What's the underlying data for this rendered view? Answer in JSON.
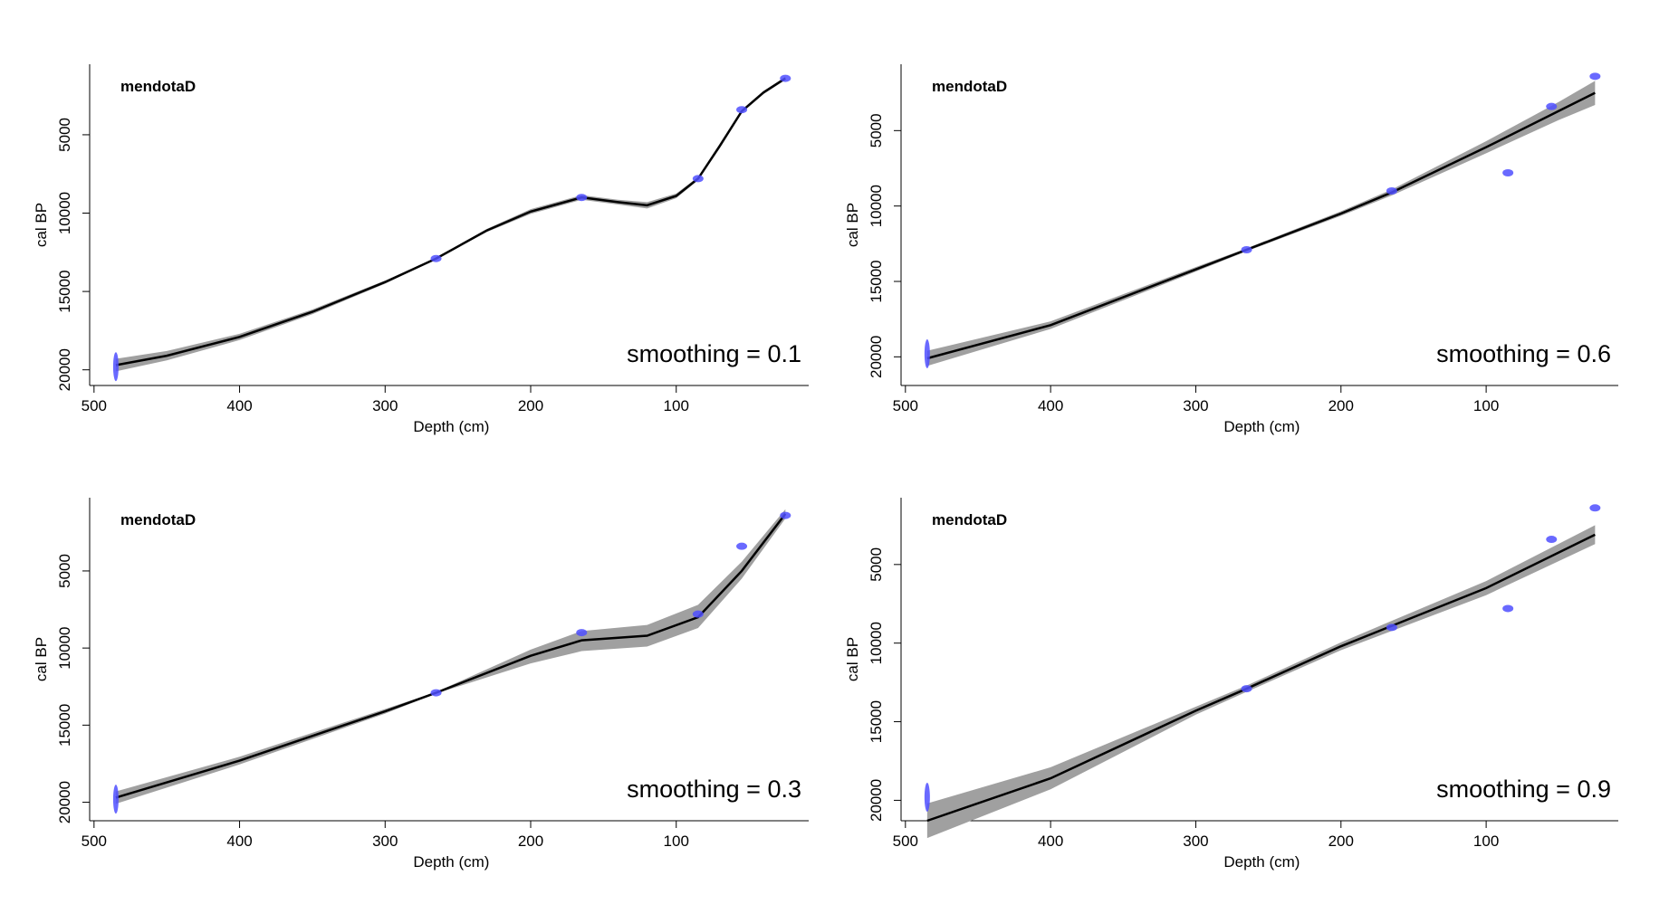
{
  "chart_data": [
    {
      "type": "line",
      "title": "mendotaD",
      "annotation": "smoothing = 0.1",
      "x_label": "Depth (cm)",
      "y_label": "cal BP",
      "xlim": [
        503,
        9
      ],
      "ylim": [
        21000,
        500
      ],
      "xticks": [
        500,
        400,
        300,
        200,
        100
      ],
      "yticks": [
        5000,
        10000,
        15000,
        20000
      ],
      "color": "#000000",
      "band_color": "#a0a0a0",
      "point_color": "#4f4fff",
      "x": [
        485,
        450,
        400,
        350,
        300,
        265,
        230,
        200,
        165,
        140,
        120,
        100,
        85,
        70,
        55,
        40,
        25
      ],
      "values": [
        19700,
        19100,
        17900,
        16300,
        14400,
        12900,
        11100,
        9900,
        9000,
        9300,
        9500,
        8900,
        7800,
        5700,
        3500,
        2300,
        1400
      ],
      "band_lower": [
        19300,
        18800,
        17700,
        16150,
        14300,
        12850,
        11000,
        9750,
        8850,
        9150,
        9300,
        8750,
        7700,
        5550,
        3400,
        2200,
        1300
      ],
      "band_upper": [
        20100,
        19400,
        18100,
        16450,
        14500,
        12950,
        11200,
        10050,
        9150,
        9450,
        9700,
        9050,
        7900,
        5850,
        3600,
        2400,
        1500
      ],
      "dates": {
        "x": [
          485,
          265,
          165,
          85,
          55,
          25
        ],
        "values": [
          19800,
          12900,
          9000,
          7800,
          3400,
          1400
        ]
      }
    },
    {
      "type": "line",
      "title": "mendotaD",
      "annotation": "smoothing = 0.6",
      "x_label": "Depth (cm)",
      "y_label": "cal BP",
      "xlim": [
        503,
        9
      ],
      "ylim": [
        21900,
        600
      ],
      "xticks": [
        500,
        400,
        300,
        200,
        100
      ],
      "yticks": [
        5000,
        10000,
        15000,
        20000
      ],
      "color": "#000000",
      "band_color": "#a0a0a0",
      "point_color": "#4f4fff",
      "x": [
        485,
        400,
        300,
        265,
        200,
        165,
        100,
        50,
        25
      ],
      "values": [
        20100,
        17900,
        14200,
        12900,
        10500,
        9100,
        6100,
        3700,
        2500
      ],
      "band_lower": [
        19600,
        17650,
        14050,
        12800,
        10350,
        8900,
        5700,
        3100,
        1700
      ],
      "band_upper": [
        20600,
        18150,
        14350,
        13000,
        10650,
        9300,
        6500,
        4300,
        3300
      ],
      "dates": {
        "x": [
          485,
          265,
          165,
          85,
          55,
          25
        ],
        "values": [
          19800,
          12900,
          9000,
          7800,
          3400,
          1400
        ]
      }
    },
    {
      "type": "line",
      "title": "mendotaD",
      "annotation": "smoothing = 0.3",
      "x_label": "Depth (cm)",
      "y_label": "cal BP",
      "xlim": [
        503,
        9
      ],
      "ylim": [
        21200,
        250
      ],
      "xticks": [
        500,
        400,
        300,
        200,
        100
      ],
      "yticks": [
        5000,
        10000,
        15000,
        20000
      ],
      "color": "#000000",
      "band_color": "#a0a0a0",
      "point_color": "#4f4fff",
      "x": [
        485,
        400,
        300,
        265,
        200,
        165,
        120,
        85,
        55,
        25
      ],
      "values": [
        19700,
        17300,
        14100,
        12900,
        10500,
        9500,
        9200,
        8000,
        5000,
        1300
      ],
      "band_lower": [
        19300,
        17050,
        13950,
        12850,
        10100,
        8900,
        8500,
        7200,
        4400,
        1000
      ],
      "band_upper": [
        20100,
        17550,
        14250,
        12950,
        11000,
        10200,
        9900,
        8700,
        5500,
        1600
      ],
      "dates": {
        "x": [
          485,
          265,
          165,
          85,
          55,
          25
        ],
        "values": [
          19800,
          12900,
          9000,
          7800,
          3400,
          1400
        ]
      }
    },
    {
      "type": "line",
      "title": "mendotaD",
      "annotation": "smoothing = 0.9",
      "x_label": "Depth (cm)",
      "y_label": "cal BP",
      "xlim": [
        503,
        9
      ],
      "ylim": [
        21300,
        750
      ],
      "xticks": [
        500,
        400,
        300,
        200,
        100
      ],
      "yticks": [
        5000,
        10000,
        15000,
        20000
      ],
      "color": "#000000",
      "band_color": "#a0a0a0",
      "point_color": "#4f4fff",
      "x": [
        485,
        400,
        300,
        265,
        200,
        100,
        25
      ],
      "values": [
        21300,
        18600,
        14300,
        12900,
        10200,
        6500,
        3100
      ],
      "band_lower": [
        20200,
        17900,
        14050,
        12700,
        9950,
        6050,
        2500
      ],
      "band_upper": [
        22400,
        19300,
        14550,
        13100,
        10450,
        6950,
        3700
      ],
      "dates": {
        "x": [
          485,
          265,
          165,
          85,
          55,
          25
        ],
        "values": [
          19800,
          12900,
          9000,
          7800,
          3400,
          1400
        ]
      }
    }
  ]
}
